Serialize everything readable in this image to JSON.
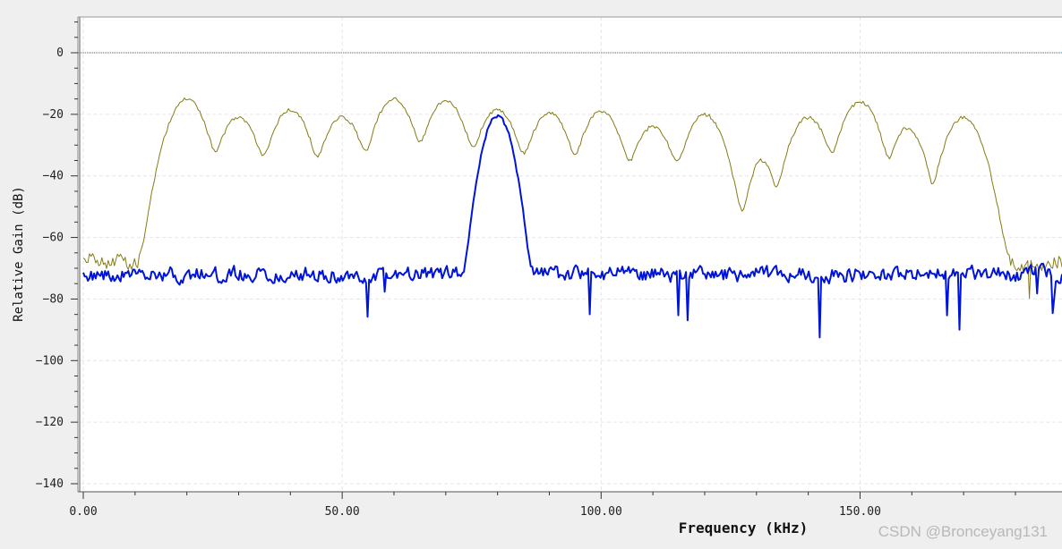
{
  "chart_data": {
    "type": "line",
    "xlabel": "Frequency (kHz)",
    "ylabel": "Relative Gain (dB)",
    "xlim": [
      -1,
      189
    ],
    "ylim": [
      -141.5,
      11.5
    ],
    "x_ticks": [
      0,
      50,
      100,
      150
    ],
    "x_tick_labels": [
      "0.00",
      "50.00",
      "100.00",
      "150.00"
    ],
    "x_minor_step": 10,
    "y_ticks": [
      0,
      -20,
      -40,
      -60,
      -80,
      -100,
      -120,
      -140
    ],
    "y_tick_labels": [
      "0",
      "−20",
      "−40",
      "−60",
      "−80",
      "−100",
      "−120",
      "−140"
    ],
    "y_minor_step": 5,
    "grid": true,
    "reference_line": {
      "y": 0,
      "color": "#1f6fa8"
    },
    "series": [
      {
        "color": "#857b14",
        "peaks": [
          {
            "x": 20,
            "y": -15,
            "w": 1.8
          },
          {
            "x": 30,
            "y": -21,
            "w": 1.8
          },
          {
            "x": 40,
            "y": -18.5,
            "w": 1.8
          },
          {
            "x": 50,
            "y": -21,
            "w": 1.8
          },
          {
            "x": 60,
            "y": -15,
            "w": 1.8
          },
          {
            "x": 70,
            "y": -15.5,
            "w": 1.8
          },
          {
            "x": 75.5,
            "y": -46,
            "w": 1.0
          },
          {
            "x": 80,
            "y": -18.5,
            "w": 1.8
          },
          {
            "x": 90,
            "y": -19.5,
            "w": 1.8
          },
          {
            "x": 100,
            "y": -19,
            "w": 1.8
          },
          {
            "x": 103.5,
            "y": -40,
            "w": 1.0
          },
          {
            "x": 110,
            "y": -24,
            "w": 1.8
          },
          {
            "x": 114,
            "y": -44,
            "w": 1.0
          },
          {
            "x": 120,
            "y": -20,
            "w": 1.8
          },
          {
            "x": 128,
            "y": -57,
            "w": 1.2
          },
          {
            "x": 131,
            "y": -35,
            "w": 1.2
          },
          {
            "x": 140,
            "y": -21,
            "w": 1.8
          },
          {
            "x": 150,
            "y": -16,
            "w": 1.8
          },
          {
            "x": 159,
            "y": -24.5,
            "w": 1.4
          },
          {
            "x": 161.5,
            "y": -34,
            "w": 1.0
          },
          {
            "x": 170,
            "y": -21,
            "w": 1.8
          }
        ],
        "floor": -68,
        "noise": 5
      },
      {
        "color": "#0014d8",
        "peaks": [
          {
            "x": 80,
            "y": -20.5,
            "w": 1.3
          }
        ],
        "floor": -72,
        "noise": 4
      }
    ]
  },
  "watermark": "CSDN @Bronceyang131"
}
